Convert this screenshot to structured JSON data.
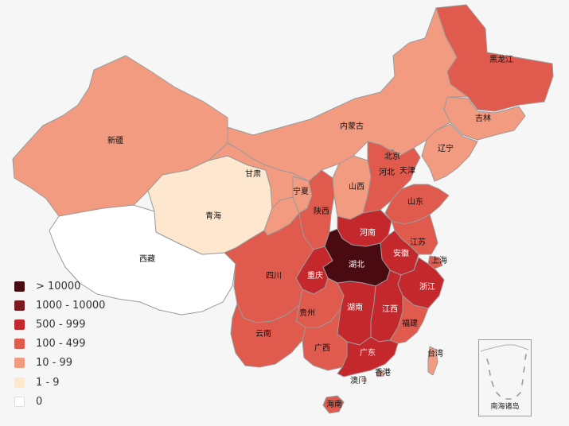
{
  "map": {
    "provinces": [
      {
        "name": "黑龙江",
        "level": 3
      },
      {
        "name": "吉林",
        "level": 2
      },
      {
        "name": "辽宁",
        "level": 2
      },
      {
        "name": "内蒙古",
        "level": 2
      },
      {
        "name": "新疆",
        "level": 2
      },
      {
        "name": "西藏",
        "level": 0
      },
      {
        "name": "青海",
        "level": 1
      },
      {
        "name": "甘肃",
        "level": 2
      },
      {
        "name": "宁夏",
        "level": 2
      },
      {
        "name": "陕西",
        "level": 3
      },
      {
        "name": "山西",
        "level": 2
      },
      {
        "name": "北京",
        "level": 3
      },
      {
        "name": "天津",
        "level": 3
      },
      {
        "name": "河北",
        "level": 3
      },
      {
        "name": "山东",
        "level": 3
      },
      {
        "name": "河南",
        "level": 4
      },
      {
        "name": "江苏",
        "level": 3
      },
      {
        "name": "安徽",
        "level": 4
      },
      {
        "name": "上海",
        "level": 3
      },
      {
        "name": "浙江",
        "level": 4
      },
      {
        "name": "湖北",
        "level": 6
      },
      {
        "name": "重庆",
        "level": 4
      },
      {
        "name": "四川",
        "level": 3
      },
      {
        "name": "贵州",
        "level": 3
      },
      {
        "name": "云南",
        "level": 3
      },
      {
        "name": "湖南",
        "level": 4
      },
      {
        "name": "江西",
        "level": 4
      },
      {
        "name": "福建",
        "level": 3
      },
      {
        "name": "广西",
        "level": 3
      },
      {
        "name": "广东",
        "level": 4
      },
      {
        "name": "海南",
        "level": 3
      },
      {
        "name": "台湾",
        "level": 2
      },
      {
        "name": "香港",
        "level": 2
      },
      {
        "name": "澳门",
        "level": 2
      }
    ]
  },
  "legend": [
    {
      "label": "> 10000",
      "color": "#4a0a12"
    },
    {
      "label": "1000 - 10000",
      "color": "#7d1a22"
    },
    {
      "label": "500 - 999",
      "color": "#c4282c"
    },
    {
      "label": "100 - 499",
      "color": "#e05a4e"
    },
    {
      "label": "10 - 99",
      "color": "#f29b80"
    },
    {
      "label": "1 - 9",
      "color": "#fde8cf"
    },
    {
      "label": "0",
      "color": "#ffffff"
    }
  ],
  "level_colors": [
    "#ffffff",
    "#fde8cf",
    "#f29b80",
    "#e05a4e",
    "#c4282c",
    "#7d1a22",
    "#4a0a12"
  ],
  "inset": {
    "label": "南海诸岛"
  }
}
